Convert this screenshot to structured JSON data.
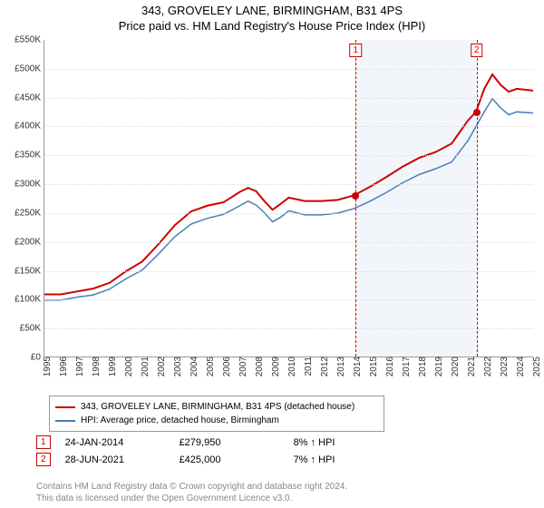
{
  "chart": {
    "type": "line",
    "title_line1": "343, GROVELEY LANE, BIRMINGHAM, B31 4PS",
    "title_line2": "Price paid vs. HM Land Registry's House Price Index (HPI)",
    "title_fontsize": 13,
    "yaxis": {
      "min": 0,
      "max": 550000,
      "tick_step": 50000,
      "tick_prefix": "£",
      "tick_suffix": "K",
      "label_fontsize": 10
    },
    "xaxis": {
      "min": 1995,
      "max": 2025,
      "tick_step": 1,
      "label_fontsize": 10
    },
    "grid_color": "#dddddd",
    "background_color": "#ffffff",
    "band": {
      "x_start": 2014.07,
      "x_end": 2021.49,
      "fill": "rgba(70,130,200,0.07)"
    },
    "series": [
      {
        "id": "property",
        "label": "343, GROVELEY LANE, BIRMINGHAM, B31 4PS (detached house)",
        "color": "#cc0000",
        "width": 2,
        "points": [
          [
            1995,
            108000
          ],
          [
            1996,
            108000
          ],
          [
            1997,
            113000
          ],
          [
            1998,
            118000
          ],
          [
            1999,
            128000
          ],
          [
            2000,
            148000
          ],
          [
            2001,
            165000
          ],
          [
            2002,
            195000
          ],
          [
            2003,
            228000
          ],
          [
            2004,
            252000
          ],
          [
            2005,
            262000
          ],
          [
            2006,
            268000
          ],
          [
            2007,
            286000
          ],
          [
            2007.5,
            293000
          ],
          [
            2008,
            287000
          ],
          [
            2008.5,
            270000
          ],
          [
            2009,
            255000
          ],
          [
            2009.5,
            265000
          ],
          [
            2010,
            276000
          ],
          [
            2011,
            270000
          ],
          [
            2012,
            270000
          ],
          [
            2013,
            272000
          ],
          [
            2014,
            280000
          ],
          [
            2015,
            295000
          ],
          [
            2016,
            312000
          ],
          [
            2017,
            330000
          ],
          [
            2018,
            345000
          ],
          [
            2019,
            355000
          ],
          [
            2020,
            370000
          ],
          [
            2021,
            410000
          ],
          [
            2021.49,
            425000
          ],
          [
            2022,
            465000
          ],
          [
            2022.5,
            490000
          ],
          [
            2023,
            472000
          ],
          [
            2023.5,
            460000
          ],
          [
            2024,
            465000
          ],
          [
            2025,
            462000
          ]
        ]
      },
      {
        "id": "hpi",
        "label": "HPI: Average price, detached house, Birmingham",
        "color": "#4a7ebb",
        "width": 1.5,
        "points": [
          [
            1995,
            98000
          ],
          [
            1996,
            98000
          ],
          [
            1997,
            103000
          ],
          [
            1998,
            107000
          ],
          [
            1999,
            117000
          ],
          [
            2000,
            135000
          ],
          [
            2001,
            150000
          ],
          [
            2002,
            178000
          ],
          [
            2003,
            208000
          ],
          [
            2004,
            230000
          ],
          [
            2005,
            240000
          ],
          [
            2006,
            247000
          ],
          [
            2007,
            262000
          ],
          [
            2007.5,
            270000
          ],
          [
            2008,
            263000
          ],
          [
            2008.5,
            250000
          ],
          [
            2009,
            234000
          ],
          [
            2009.5,
            242000
          ],
          [
            2010,
            253000
          ],
          [
            2011,
            246000
          ],
          [
            2012,
            246000
          ],
          [
            2013,
            249000
          ],
          [
            2014,
            257000
          ],
          [
            2015,
            270000
          ],
          [
            2016,
            285000
          ],
          [
            2017,
            302000
          ],
          [
            2018,
            316000
          ],
          [
            2019,
            326000
          ],
          [
            2020,
            338000
          ],
          [
            2021,
            375000
          ],
          [
            2022,
            425000
          ],
          [
            2022.5,
            448000
          ],
          [
            2023,
            432000
          ],
          [
            2023.5,
            420000
          ],
          [
            2024,
            425000
          ],
          [
            2025,
            423000
          ]
        ]
      }
    ],
    "markers": [
      {
        "num": "1",
        "x": 2014.07,
        "y": 279950,
        "dot_color": "#cc0000",
        "dot_size": 8
      },
      {
        "num": "2",
        "x": 2021.49,
        "y": 425000,
        "dot_color": "#cc0000",
        "dot_size": 8
      }
    ]
  },
  "legend": {
    "items": [
      {
        "color": "#cc0000",
        "text": "343, GROVELEY LANE, BIRMINGHAM, B31 4PS (detached house)"
      },
      {
        "color": "#4a7ebb",
        "text": "HPI: Average price, detached house, Birmingham"
      }
    ]
  },
  "transactions": [
    {
      "num": "1",
      "date": "24-JAN-2014",
      "price": "£279,950",
      "delta": "8% ↑ HPI"
    },
    {
      "num": "2",
      "date": "28-JUN-2021",
      "price": "£425,000",
      "delta": "7% ↑ HPI"
    }
  ],
  "attribution": {
    "line1": "Contains HM Land Registry data © Crown copyright and database right 2024.",
    "line2": "This data is licensed under the Open Government Licence v3.0."
  }
}
